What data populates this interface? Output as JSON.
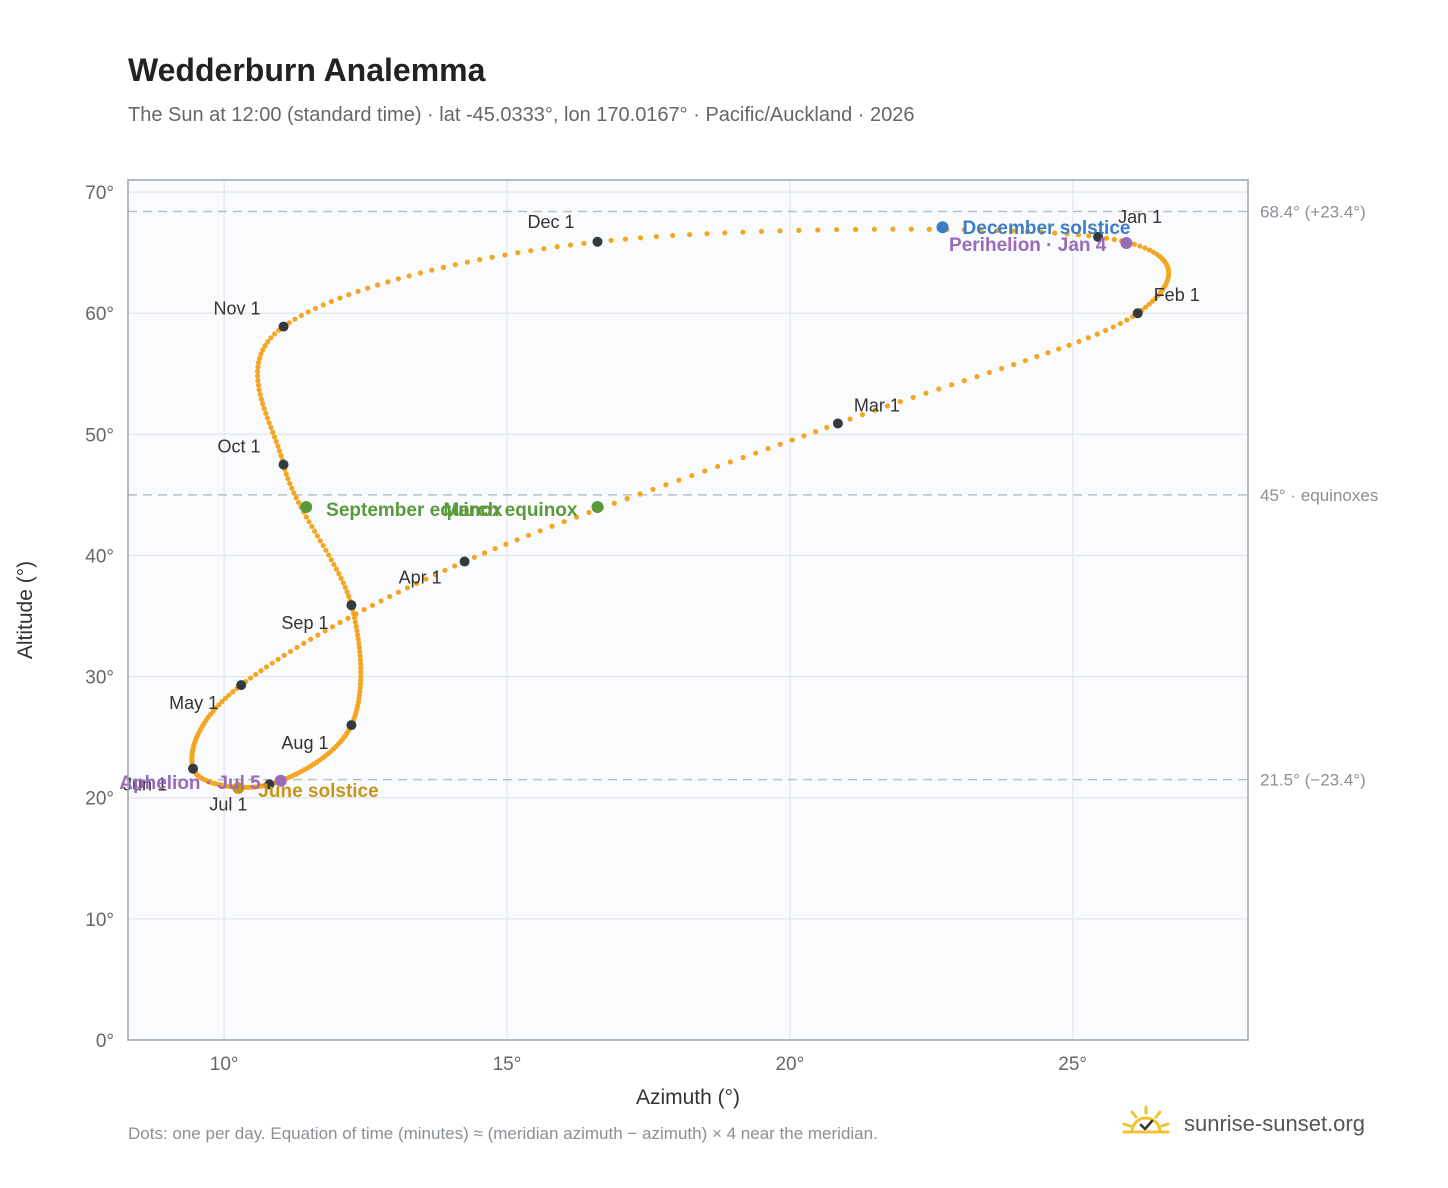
{
  "header": {
    "title": "Wedderburn Analemma",
    "subtitle": "The Sun at 12:00 (standard time) · lat -45.0333°, lon 170.0167° · Pacific/Auckland · 2026"
  },
  "footer": {
    "note": "Dots: one per day. Equation of time (minutes) ≈ (meridian azimuth − azimuth) × 4 near the meridian.",
    "brand": "sunrise-sunset.org",
    "brand_icon": "sun-check-icon"
  },
  "colors": {
    "path": "#f4a623",
    "month_dot": "#333a40",
    "december_solstice": "#3d7dc4",
    "june_solstice": "#c8941a",
    "equinox": "#5a9a3a",
    "apsis": "#9a6bb8",
    "reference_line": "#b8bec7",
    "plot_bg": "#fafbfd",
    "grid": "#e6eaef"
  },
  "chart_data": {
    "type": "scatter",
    "xlabel": "Azimuth (°)",
    "ylabel": "Altitude (°)",
    "xlim": [
      8.3,
      28.1
    ],
    "ylim": [
      0,
      71
    ],
    "grid": true,
    "x_ticks": [
      {
        "value": 10,
        "label": "10°"
      },
      {
        "value": 15,
        "label": "15°"
      },
      {
        "value": 20,
        "label": "20°"
      },
      {
        "value": 25,
        "label": "25°"
      }
    ],
    "y_ticks": [
      {
        "value": 0,
        "label": "0°"
      },
      {
        "value": 10,
        "label": "10°"
      },
      {
        "value": 20,
        "label": "20°"
      },
      {
        "value": 30,
        "label": "30°"
      },
      {
        "value": 40,
        "label": "40°"
      },
      {
        "value": 50,
        "label": "50°"
      },
      {
        "value": 60,
        "label": "60°"
      },
      {
        "value": 70,
        "label": "70°"
      }
    ],
    "reference_lines": [
      {
        "y": 68.4,
        "label": "68.4° (+23.4°)"
      },
      {
        "y": 45.0,
        "label": "45° · equinoxes"
      },
      {
        "y": 21.5,
        "label": "21.5° (−23.4°)"
      }
    ],
    "month_points": [
      {
        "label": "Jan 1",
        "x": 25.45,
        "y": 66.3
      },
      {
        "label": "Feb 1",
        "x": 26.15,
        "y": 60.0
      },
      {
        "label": "Mar 1",
        "x": 20.85,
        "y": 50.9
      },
      {
        "label": "Apr 1",
        "x": 14.25,
        "y": 39.5
      },
      {
        "label": "May 1",
        "x": 10.3,
        "y": 29.3
      },
      {
        "label": "Jun 1",
        "x": 9.45,
        "y": 22.4
      },
      {
        "label": "Jul 1",
        "x": 10.8,
        "y": 21.1
      },
      {
        "label": "Aug 1",
        "x": 12.25,
        "y": 26.0
      },
      {
        "label": "Sep 1",
        "x": 12.25,
        "y": 35.9
      },
      {
        "label": "Oct 1",
        "x": 11.05,
        "y": 47.5
      },
      {
        "label": "Nov 1",
        "x": 11.05,
        "y": 58.9
      },
      {
        "label": "Dec 1",
        "x": 16.6,
        "y": 65.9
      }
    ],
    "events": [
      {
        "label": "December solstice",
        "x": 22.7,
        "y": 67.1,
        "color_key": "december_solstice"
      },
      {
        "label": "Perihelion · Jan 4",
        "x": 25.95,
        "y": 65.8,
        "color_key": "apsis"
      },
      {
        "label": "March equinox",
        "x": 16.6,
        "y": 44.0,
        "color_key": "equinox"
      },
      {
        "label": "September equinox",
        "x": 11.45,
        "y": 44.0,
        "color_key": "equinox"
      },
      {
        "label": "June solstice",
        "x": 10.25,
        "y": 20.8,
        "color_key": "june_solstice"
      },
      {
        "label": "Aphelion · Jul 5",
        "x": 11.0,
        "y": 21.4,
        "color_key": "apsis"
      }
    ]
  }
}
